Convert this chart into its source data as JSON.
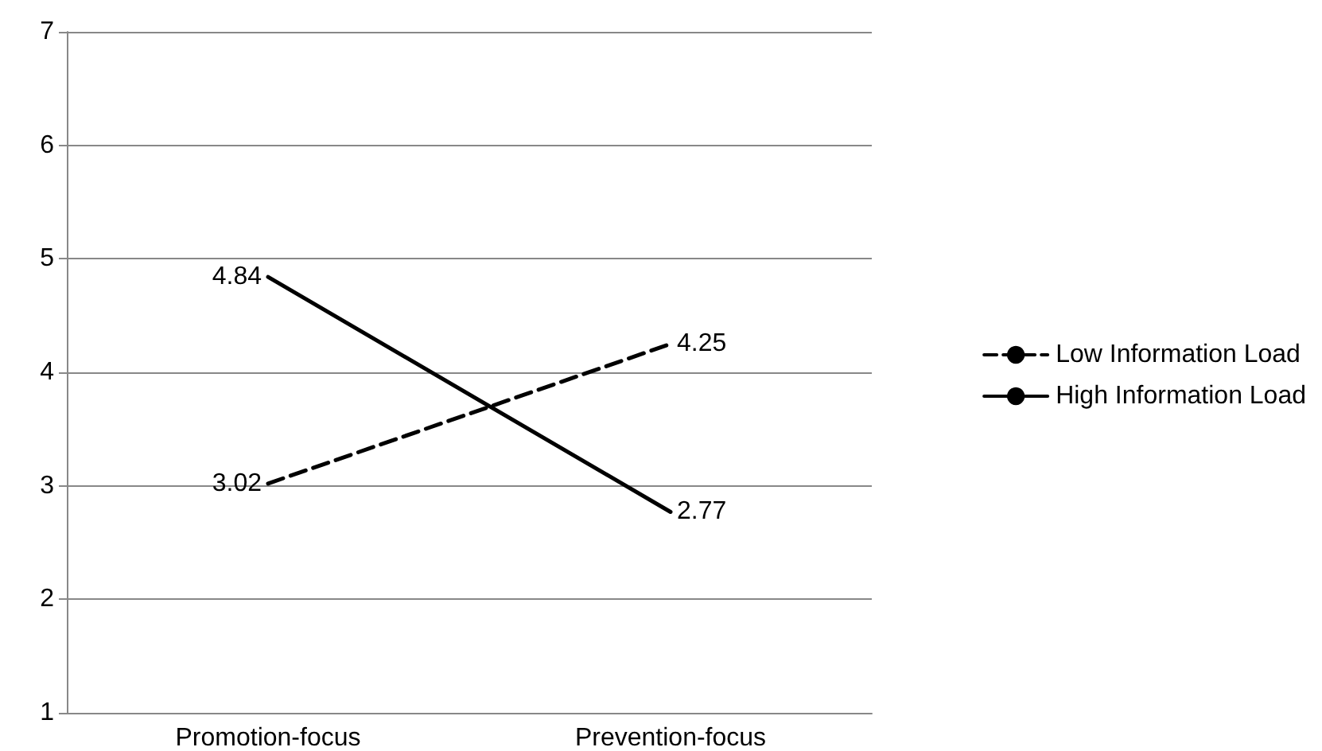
{
  "chart_data": {
    "type": "line",
    "categories": [
      "Promotion-focus",
      "Prevention-focus"
    ],
    "series": [
      {
        "name": "Low Information Load",
        "color": "#000000",
        "line_style": "dashed",
        "values": [
          3.02,
          4.25
        ]
      },
      {
        "name": "High Information Load",
        "color": "#000000",
        "line_style": "solid",
        "values": [
          4.84,
          2.77
        ]
      }
    ],
    "ylim": [
      1,
      7
    ],
    "yticks": [
      1,
      2,
      3,
      4,
      5,
      6,
      7
    ],
    "grid": "y",
    "legend": "right",
    "marker": "none",
    "data_labels": true
  }
}
